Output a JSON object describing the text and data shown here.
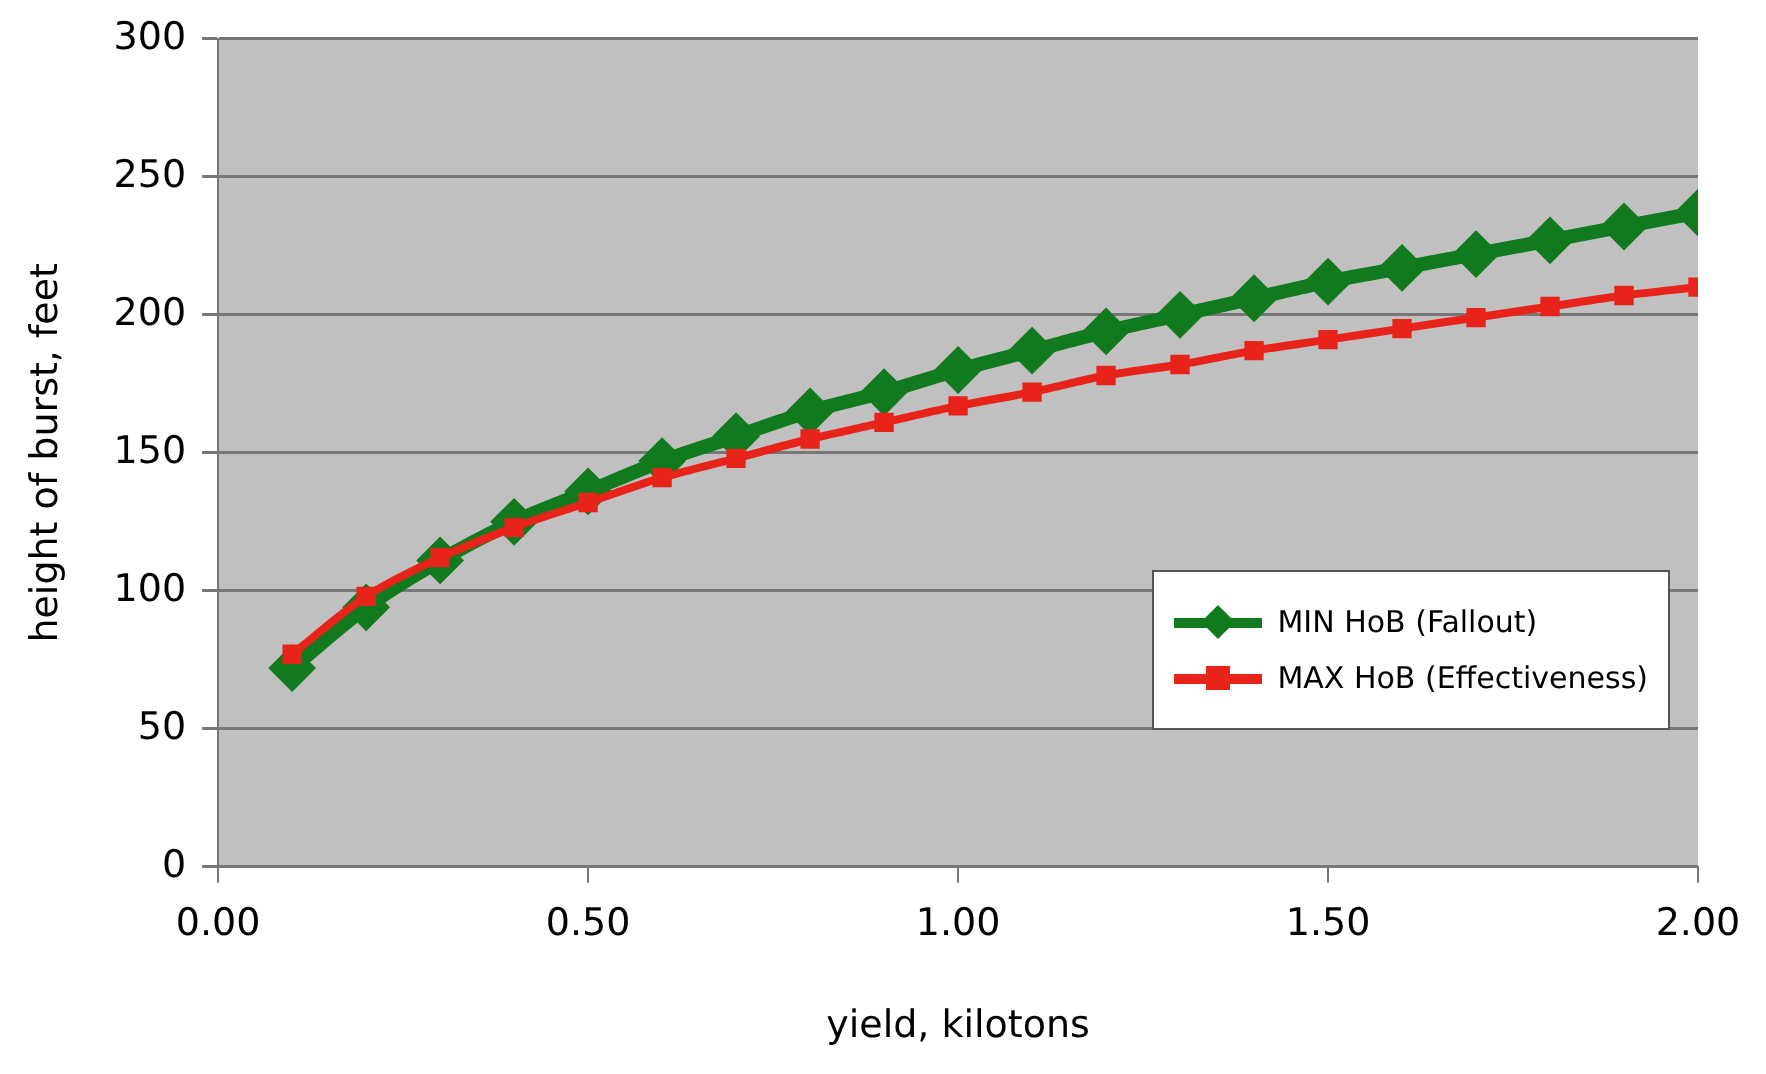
{
  "chart_data": {
    "type": "line",
    "xlabel": "yield, kilotons",
    "ylabel": "height of burst, feet",
    "x": [
      0.1,
      0.2,
      0.3,
      0.4,
      0.5,
      0.6,
      0.7,
      0.8,
      0.9,
      1.0,
      1.1,
      1.2,
      1.3,
      1.4,
      1.5,
      1.6,
      1.7,
      1.8,
      1.9,
      2.0
    ],
    "series": [
      {
        "name": "MIN HoB (Fallout)",
        "color": "#117a1e",
        "marker": "diamond",
        "values": [
          72,
          94,
          111,
          125,
          136,
          147,
          156,
          165,
          172,
          180,
          187,
          194,
          200,
          206,
          212,
          217,
          222,
          227,
          232,
          237
        ]
      },
      {
        "name": "MAX HoB (Effectiveness)",
        "color": "#e8231a",
        "marker": "square",
        "values": [
          77,
          98,
          112,
          123,
          132,
          141,
          148,
          155,
          161,
          167,
          172,
          178,
          182,
          187,
          191,
          195,
          199,
          203,
          207,
          210
        ]
      }
    ],
    "xlim": [
      0,
      2
    ],
    "xticks": [
      {
        "value": 0,
        "label": "0.00"
      },
      {
        "value": 0.5,
        "label": "0.50"
      },
      {
        "value": 1,
        "label": "1.00"
      },
      {
        "value": 1.5,
        "label": "1.50"
      },
      {
        "value": 2,
        "label": "2.00"
      }
    ],
    "ylim": [
      0,
      300
    ],
    "yticks": [
      0,
      50,
      100,
      150,
      200,
      250,
      300
    ],
    "grid": "y",
    "legend": "bottom right",
    "line_style": "solid"
  }
}
